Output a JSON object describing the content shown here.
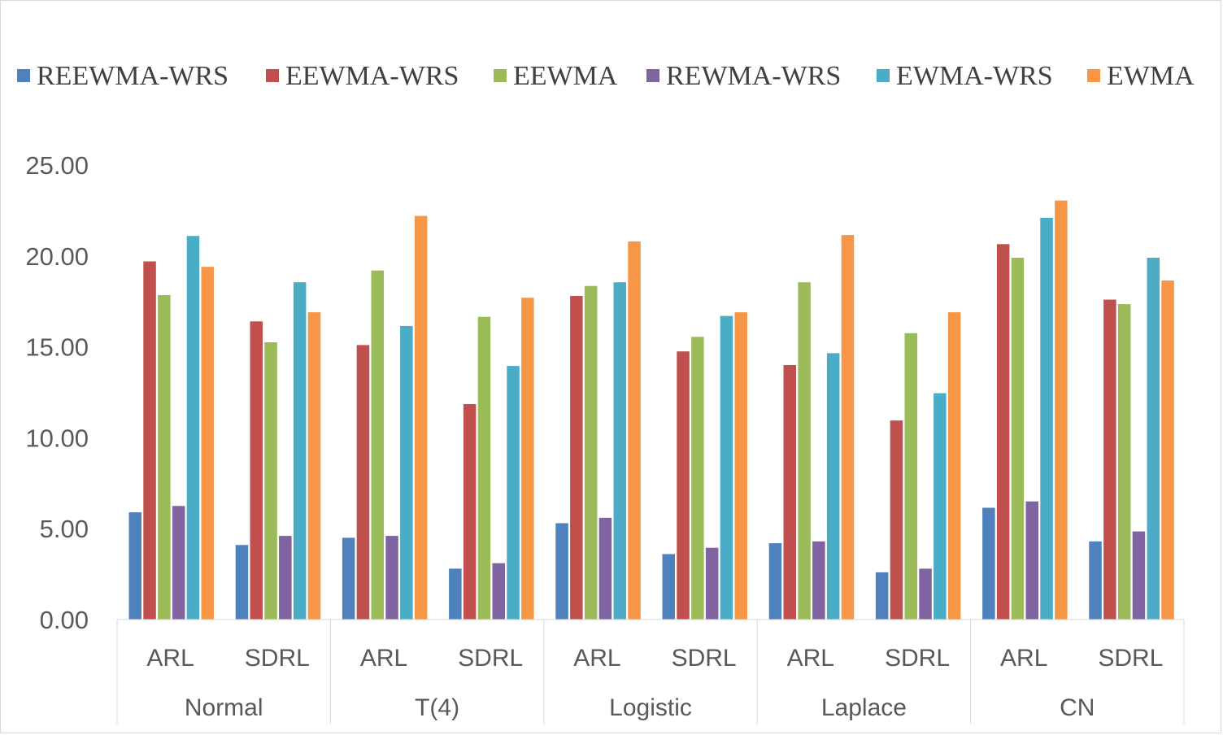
{
  "chart_data": {
    "type": "bar",
    "title": "",
    "xlabel": "",
    "ylabel": "",
    "ylim": [
      0,
      25
    ],
    "yticks": [
      "0.00",
      "5.00",
      "10.00",
      "15.00",
      "20.00",
      "25.00"
    ],
    "grid": false,
    "legend_position": "top",
    "groups": [
      "Normal",
      "T(4)",
      "Logistic",
      "Laplace",
      "CN"
    ],
    "subcategories": [
      "ARL",
      "SDRL"
    ],
    "categories": [
      "Normal ARL",
      "Normal SDRL",
      "T(4) ARL",
      "T(4) SDRL",
      "Logistic ARL",
      "Logistic SDRL",
      "Laplace ARL",
      "Laplace SDRL",
      "CN ARL",
      "CN SDRL"
    ],
    "series": [
      {
        "name": "REEWMA-WRS",
        "color": "#4f81bd",
        "values": [
          5.9,
          4.1,
          4.5,
          2.8,
          5.3,
          3.6,
          4.2,
          2.6,
          6.15,
          4.3
        ]
      },
      {
        "name": "EEWMA-WRS",
        "color": "#c0504d",
        "values": [
          19.7,
          16.4,
          15.1,
          11.85,
          17.8,
          14.75,
          14.0,
          10.95,
          20.65,
          17.6
        ]
      },
      {
        "name": "EEWMA",
        "color": "#9bbb59",
        "values": [
          17.85,
          15.25,
          19.2,
          16.65,
          18.35,
          15.55,
          18.55,
          15.75,
          19.9,
          17.35
        ]
      },
      {
        "name": "REWMA-WRS",
        "color": "#8064a2",
        "values": [
          6.25,
          4.6,
          4.6,
          3.1,
          5.6,
          3.95,
          4.3,
          2.8,
          6.5,
          4.85
        ]
      },
      {
        "name": "EWMA-WRS",
        "color": "#4bacc6",
        "values": [
          21.1,
          18.55,
          16.15,
          13.95,
          18.55,
          16.7,
          14.65,
          12.45,
          22.1,
          19.9
        ]
      },
      {
        "name": "EWMA",
        "color": "#f79646",
        "values": [
          19.4,
          16.9,
          22.2,
          17.7,
          20.8,
          16.9,
          21.15,
          16.9,
          23.05,
          18.65
        ]
      }
    ]
  }
}
